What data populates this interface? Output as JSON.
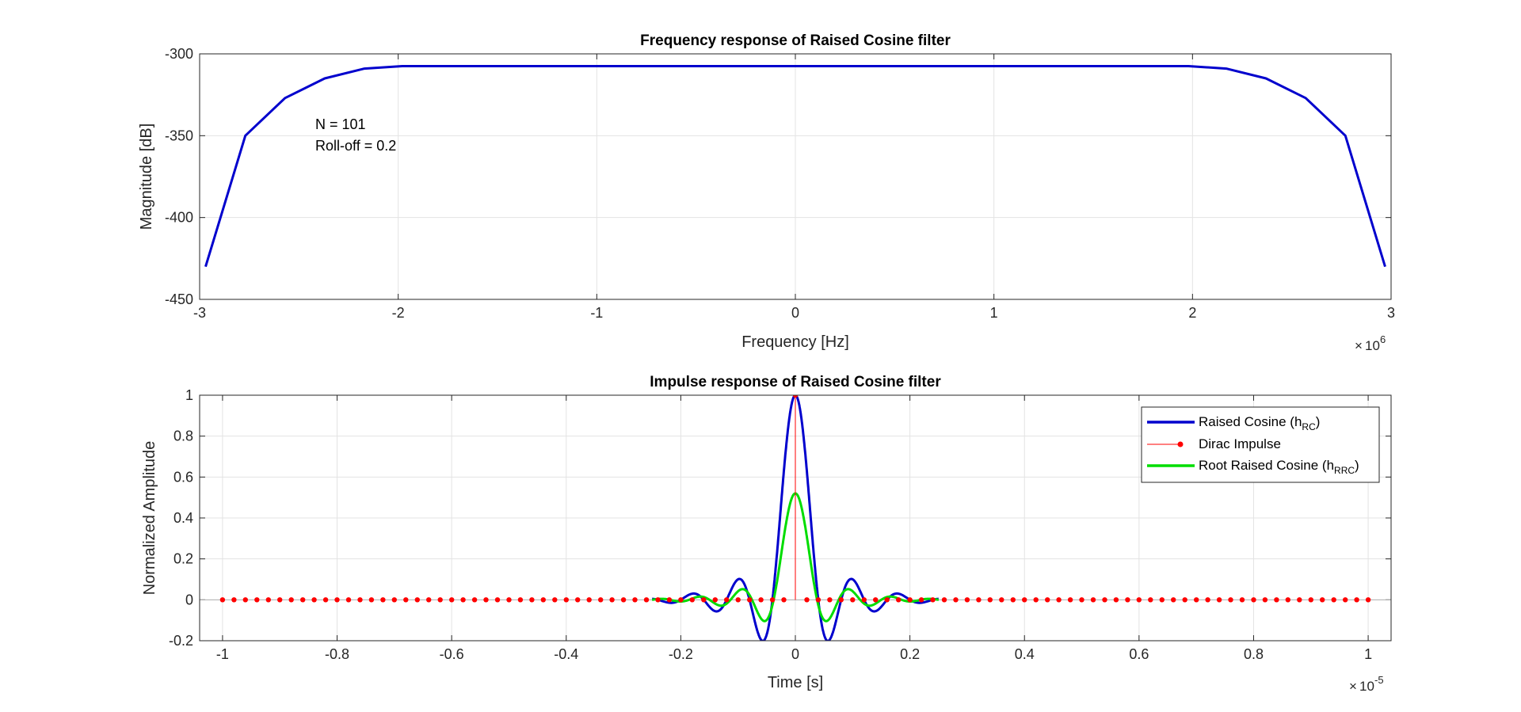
{
  "chart_data": [
    {
      "type": "line",
      "title": "Frequency response of Raised Cosine filter",
      "xlabel": "Frequency [Hz]",
      "ylabel": "Magnitude [dB]",
      "x_exponent_label": "10",
      "x_exponent": "6",
      "xlim": [
        -3,
        3
      ],
      "ylim": [
        -450,
        -300
      ],
      "xticks": [
        -3,
        -2,
        -1,
        0,
        1,
        2,
        3
      ],
      "yticks": [
        -450,
        -400,
        -350,
        -300
      ],
      "xtick_labels": [
        "-3",
        "-2",
        "-1",
        "0",
        "1",
        "2",
        "3"
      ],
      "ytick_labels": [
        "-450",
        "-400",
        "-350",
        "-300"
      ],
      "grid": true,
      "annotation": [
        "N = 101",
        "Roll-off = 0.2"
      ],
      "series": [
        {
          "color": "#0000cd",
          "x": [
            -2.97,
            -2.77,
            -2.57,
            -2.37,
            -2.17,
            -1.98,
            -1.5,
            -1,
            -0.5,
            0,
            0.5,
            1,
            1.5,
            1.98,
            2.17,
            2.37,
            2.57,
            2.77,
            2.97
          ],
          "y": [
            -430,
            -350,
            -327,
            -315,
            -309,
            -307.5,
            -307.5,
            -307.5,
            -307.5,
            -307.5,
            -307.5,
            -307.5,
            -307.5,
            -307.5,
            -309,
            -315,
            -327,
            -350,
            -430
          ]
        }
      ]
    },
    {
      "type": "line",
      "title": "Impulse response of Raised Cosine filter",
      "xlabel": "Time [s]",
      "ylabel": "Normalized Amplitude",
      "x_exponent_label": "10",
      "x_exponent": "-5",
      "xlim": [
        -1.04,
        1.04
      ],
      "ylim": [
        -0.2,
        1
      ],
      "xticks": [
        -1,
        -0.8,
        -0.6,
        -0.4,
        -0.2,
        0,
        0.2,
        0.4,
        0.6,
        0.8,
        1
      ],
      "yticks": [
        -0.2,
        0,
        0.2,
        0.4,
        0.6,
        0.8,
        1
      ],
      "xtick_labels": [
        "-1",
        "-0.8",
        "-0.6",
        "-0.4",
        "-0.2",
        "0",
        "0.2",
        "0.4",
        "0.6",
        "0.8",
        "1"
      ],
      "ytick_labels": [
        "-0.2",
        "0",
        "0.2",
        "0.4",
        "0.6",
        "0.8",
        "1"
      ],
      "grid": true,
      "legend_position": "top-right",
      "legend": [
        {
          "label": "Raised Cosine (h",
          "sub": "RC",
          "close": ")",
          "color": "#0000cd",
          "style": "line"
        },
        {
          "label": "Dirac Impulse",
          "sub": "",
          "close": "",
          "color": "#ff0000",
          "style": "stem"
        },
        {
          "label": "Root Raised Cosine (h",
          "sub": "RRC",
          "close": ")",
          "color": "#00dd00",
          "style": "line"
        }
      ],
      "series": [
        {
          "name": "Raised Cosine (hRC)",
          "color": "#0000cd",
          "params": {
            "T": 0.04,
            "beta": 0.2,
            "range": [
              -0.25,
              0.25
            ],
            "amplitude": 1
          }
        },
        {
          "name": "Dirac Impulse",
          "color": "#ff0000",
          "params": {
            "range": [
              -1,
              1
            ],
            "step": 0.02,
            "peak_x": 0,
            "peak_y": 1
          }
        },
        {
          "name": "Root Raised Cosine (hRRC)",
          "color": "#00dd00",
          "params": {
            "T": 0.04,
            "beta": 0.2,
            "range": [
              -0.25,
              0.25
            ],
            "amplitude": 0.52
          }
        }
      ]
    }
  ]
}
